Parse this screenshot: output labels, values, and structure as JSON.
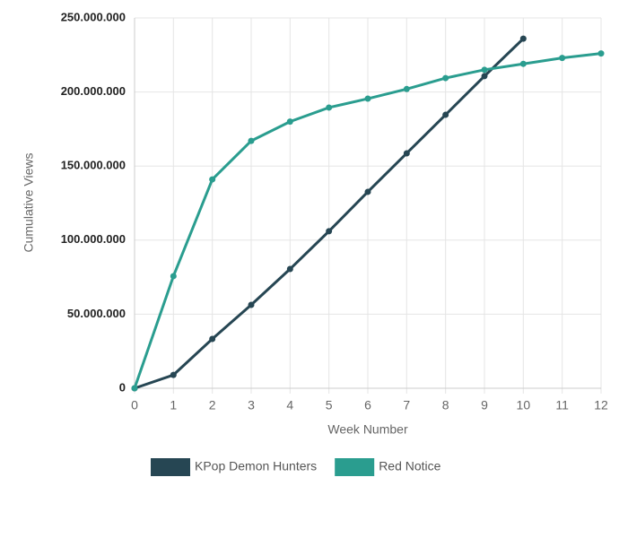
{
  "chart_data": {
    "type": "line",
    "x_label": "Week Number",
    "y_label": "Cumulative Views",
    "x": [
      0,
      1,
      2,
      3,
      4,
      5,
      6,
      7,
      8,
      9,
      10,
      11,
      12
    ],
    "series": [
      {
        "name": "KPop Demon Hunters",
        "color": "#264653",
        "values": [
          0,
          9000000,
          33300000,
          56300000,
          80500000,
          106000000,
          132600000,
          158600000,
          184600000,
          210700000,
          236000000,
          null,
          null
        ]
      },
      {
        "name": "Red Notice",
        "color": "#2a9d8f",
        "values": [
          0,
          75700000,
          141000000,
          167000000,
          180000000,
          189500000,
          195500000,
          202000000,
          209400000,
          215000000,
          219000000,
          223000000,
          226000000
        ]
      }
    ],
    "xlim": [
      0,
      12
    ],
    "xticks": [
      0,
      1,
      2,
      3,
      4,
      5,
      6,
      7,
      8,
      9,
      10,
      11,
      12
    ],
    "ylim": [
      0,
      250000000
    ],
    "yticks": [
      0,
      {
        "value": 50000000,
        "label": "50.000.000"
      },
      {
        "value": 100000000,
        "label": "100.000.000"
      },
      {
        "value": 150000000,
        "label": "150.000.000"
      },
      {
        "value": 200000000,
        "label": "200.000.000"
      },
      {
        "value": 250000000,
        "label": "250.000.000"
      }
    ],
    "grid": true,
    "legend": "bottom"
  }
}
